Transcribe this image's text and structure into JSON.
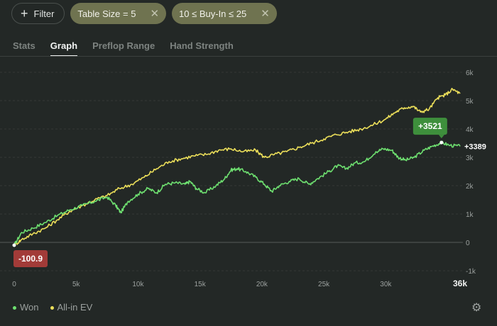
{
  "toolbar": {
    "filter_label": "Filter",
    "chips": [
      {
        "label": "Table Size = 5"
      },
      {
        "label": "10 ≤ Buy-In ≤ 25"
      }
    ]
  },
  "tabs": [
    {
      "label": "Stats",
      "active": false
    },
    {
      "label": "Graph",
      "active": true
    },
    {
      "label": "Preflop Range",
      "active": false
    },
    {
      "label": "Hand Strength",
      "active": false
    }
  ],
  "chart_data": {
    "type": "line",
    "x_ticks": [
      "0",
      "5k",
      "10k",
      "15k",
      "20k",
      "25k",
      "30k",
      "36k"
    ],
    "x_tick_values": [
      0,
      5000,
      10000,
      15000,
      20000,
      25000,
      30000,
      36000
    ],
    "y_ticks": [
      "6k",
      "5k",
      "4k",
      "3k",
      "2k",
      "1k",
      "0",
      "-1k"
    ],
    "y_tick_values": [
      6000,
      5000,
      4000,
      3000,
      2000,
      1000,
      0,
      -1000
    ],
    "xlim": [
      0,
      36000
    ],
    "ylim": [
      -1000,
      6000
    ],
    "series": [
      {
        "name": "Won",
        "color": "#6ee070",
        "points": [
          [
            0,
            -100
          ],
          [
            600,
            350
          ],
          [
            1500,
            500
          ],
          [
            2500,
            700
          ],
          [
            3500,
            950
          ],
          [
            4500,
            1150
          ],
          [
            5500,
            1300
          ],
          [
            6500,
            1450
          ],
          [
            7500,
            1600
          ],
          [
            8200,
            1300
          ],
          [
            8600,
            1050
          ],
          [
            9200,
            1450
          ],
          [
            10000,
            1700
          ],
          [
            10800,
            1900
          ],
          [
            11500,
            1750
          ],
          [
            12200,
            2050
          ],
          [
            13000,
            2100
          ],
          [
            13800,
            2050
          ],
          [
            14200,
            2150
          ],
          [
            14700,
            1900
          ],
          [
            15400,
            1750
          ],
          [
            16300,
            2000
          ],
          [
            17000,
            2250
          ],
          [
            17500,
            2550
          ],
          [
            18000,
            2600
          ],
          [
            18700,
            2500
          ],
          [
            19500,
            2300
          ],
          [
            20200,
            2050
          ],
          [
            20800,
            1800
          ],
          [
            21400,
            2000
          ],
          [
            22200,
            2150
          ],
          [
            23000,
            2250
          ],
          [
            23800,
            2050
          ],
          [
            24500,
            2250
          ],
          [
            25400,
            2500
          ],
          [
            26100,
            2700
          ],
          [
            26800,
            2600
          ],
          [
            27500,
            2800
          ],
          [
            28300,
            2850
          ],
          [
            29200,
            3200
          ],
          [
            29800,
            3300
          ],
          [
            30500,
            3250
          ],
          [
            31000,
            3000
          ],
          [
            31600,
            2900
          ],
          [
            32300,
            3000
          ],
          [
            33100,
            3250
          ],
          [
            33800,
            3400
          ],
          [
            34500,
            3521
          ],
          [
            35200,
            3420
          ],
          [
            36000,
            3389
          ]
        ]
      },
      {
        "name": "All-in EV",
        "color": "#ecdf5a",
        "points": [
          [
            0,
            -100
          ],
          [
            600,
            100
          ],
          [
            1500,
            300
          ],
          [
            2500,
            500
          ],
          [
            3500,
            800
          ],
          [
            4500,
            1100
          ],
          [
            5500,
            1300
          ],
          [
            6500,
            1500
          ],
          [
            7500,
            1650
          ],
          [
            8500,
            1900
          ],
          [
            9500,
            2050
          ],
          [
            10500,
            2300
          ],
          [
            11500,
            2600
          ],
          [
            12500,
            2850
          ],
          [
            13500,
            2950
          ],
          [
            14500,
            3050
          ],
          [
            15500,
            3100
          ],
          [
            16500,
            3250
          ],
          [
            17500,
            3300
          ],
          [
            18500,
            3200
          ],
          [
            19500,
            3250
          ],
          [
            20200,
            3000
          ],
          [
            21000,
            3100
          ],
          [
            22000,
            3200
          ],
          [
            23000,
            3350
          ],
          [
            24000,
            3500
          ],
          [
            25000,
            3650
          ],
          [
            26000,
            3800
          ],
          [
            27000,
            3900
          ],
          [
            28000,
            4000
          ],
          [
            29000,
            4150
          ],
          [
            30000,
            4350
          ],
          [
            30800,
            4600
          ],
          [
            31500,
            4750
          ],
          [
            32200,
            4800
          ],
          [
            32800,
            4600
          ],
          [
            33500,
            4700
          ],
          [
            34200,
            5100
          ],
          [
            34800,
            5200
          ],
          [
            35400,
            5400
          ],
          [
            36000,
            5250
          ]
        ]
      }
    ],
    "annotations": {
      "start_value": "-100.9",
      "peak_value": "+3521",
      "end_value": "+3389"
    },
    "legend_position": "bottom-left",
    "grid": true
  },
  "settings": {
    "icon": "gear-icon"
  }
}
